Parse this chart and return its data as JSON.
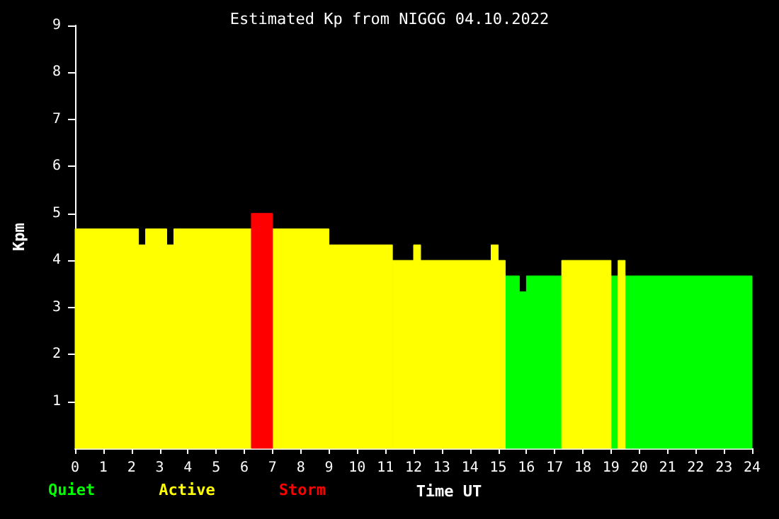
{
  "chart_data": {
    "type": "histogram",
    "title": "Estimated Kp from NIGGG 04.10.2022",
    "xlabel": "Time UT",
    "ylabel": "Kpm",
    "bins": [
      0,
      2.25,
      2.5,
      3.25,
      3.5,
      6.25,
      7,
      9,
      11.25,
      12,
      12.25,
      14.75,
      15,
      15.25,
      15.75,
      16,
      17.25,
      19,
      19.25,
      19.5,
      24
    ],
    "series": [
      {
        "name": "Quiet",
        "color": "#00ff00",
        "values": [
          null,
          null,
          null,
          null,
          null,
          null,
          null,
          null,
          null,
          null,
          null,
          null,
          null,
          3.67,
          3.33,
          3.67,
          null,
          3.67,
          null,
          3.67
        ]
      },
      {
        "name": "Active",
        "color": "#ffff00",
        "values": [
          4.67,
          4.33,
          4.67,
          4.33,
          4.67,
          null,
          4.67,
          4.33,
          4.0,
          4.33,
          4.0,
          4.33,
          4.0,
          null,
          null,
          null,
          4.0,
          null,
          4.0,
          null
        ]
      },
      {
        "name": "Storm",
        "color": "#ff0000",
        "values": [
          null,
          null,
          null,
          null,
          null,
          5.0,
          null,
          null,
          null,
          null,
          null,
          null,
          null,
          null,
          null,
          null,
          null,
          null,
          null,
          null
        ]
      }
    ],
    "xlim": [
      0,
      24
    ],
    "xticks": [
      0,
      1,
      2,
      3,
      4,
      5,
      6,
      7,
      8,
      9,
      10,
      11,
      12,
      13,
      14,
      15,
      16,
      17,
      18,
      19,
      20,
      21,
      22,
      23,
      24
    ],
    "ylim": [
      0,
      9
    ],
    "yticks": [
      1,
      2,
      3,
      4,
      5,
      6,
      7,
      8,
      9
    ],
    "grid": false,
    "legend": "bottom left"
  }
}
